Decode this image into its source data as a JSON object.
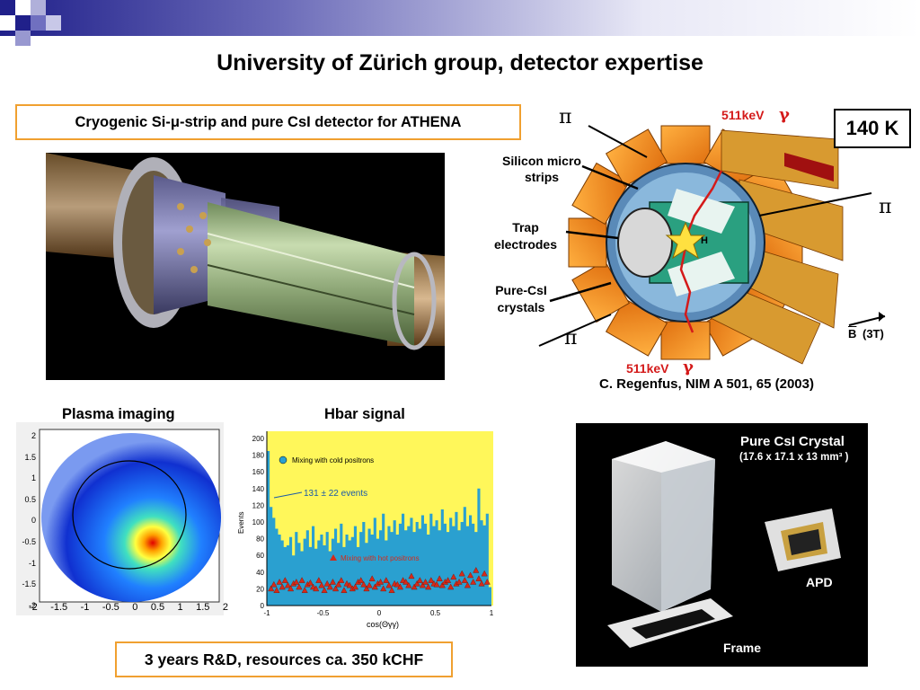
{
  "slide": {
    "title": "University of Zürich group, detector expertise",
    "athena_box": "Cryogenic Si-μ-strip and pure CsI detector for ATHENA",
    "temperature": "140 K",
    "rnd_box": "3 years R&D, resources ca. 350 kCHF",
    "reference": "C. Regenfus,  NIM A 501, 65 (2003)",
    "colors": {
      "accent": "#20208a",
      "box_border": "#f0a030",
      "red": "#d41a1a"
    }
  },
  "diagram": {
    "gamma_top": "511keV",
    "gamma_bottom": "511keV",
    "gamma_symbol": "γ",
    "pi_symbol": "π",
    "label_silicon_1": "Silicon micro",
    "label_silicon_2": "strips",
    "label_trap_1": "Trap",
    "label_trap_2": "electrodes",
    "label_csi_1": "Pure-CsI",
    "label_csi_2": "crystals",
    "center": "H",
    "field_B": "B",
    "field_value": "(3T)"
  },
  "plasma": {
    "heading": "Plasma imaging",
    "y_ticks": [
      "2",
      "1.5",
      "1",
      "0.5",
      "0",
      "-0.5",
      "-1",
      "-1.5",
      "-2"
    ],
    "x_ticks": [
      "-2",
      "-1.5",
      "-1",
      "-0.5",
      "0",
      "0.5",
      "1",
      "1.5",
      "2"
    ]
  },
  "csi_photo": {
    "title": "Pure CsI Crystal",
    "dims": "(17.6 x 17.1 x 13 mm³ )",
    "apd": "APD",
    "frame": "Frame"
  },
  "chart_data": {
    "type": "line",
    "title": "Hbar signal",
    "xlabel": "cos(Θγγ)",
    "ylabel": "Events",
    "xlim": [
      -1,
      1
    ],
    "ylim": [
      0,
      200
    ],
    "y_ticks": [
      "200",
      "180",
      "160",
      "140",
      "120",
      "100",
      "80",
      "60",
      "40",
      "20",
      "0"
    ],
    "x_ticks": [
      "-1",
      "-0.5",
      "0",
      "0.5",
      "1"
    ],
    "annotation": "131 ± 22 events",
    "series": [
      {
        "name": "Mixing with cold positrons",
        "color": "#2aa0d0",
        "x": [
          -1.0,
          -0.975,
          -0.95,
          -0.925,
          -0.9,
          -0.875,
          -0.85,
          -0.825,
          -0.8,
          -0.775,
          -0.75,
          -0.725,
          -0.7,
          -0.675,
          -0.65,
          -0.625,
          -0.6,
          -0.575,
          -0.55,
          -0.525,
          -0.5,
          -0.475,
          -0.45,
          -0.425,
          -0.4,
          -0.375,
          -0.35,
          -0.325,
          -0.3,
          -0.275,
          -0.25,
          -0.225,
          -0.2,
          -0.175,
          -0.15,
          -0.125,
          -0.1,
          -0.075,
          -0.05,
          -0.025,
          0.0,
          0.025,
          0.05,
          0.075,
          0.1,
          0.125,
          0.15,
          0.175,
          0.2,
          0.225,
          0.25,
          0.275,
          0.3,
          0.325,
          0.35,
          0.375,
          0.4,
          0.425,
          0.45,
          0.475,
          0.5,
          0.525,
          0.55,
          0.575,
          0.6,
          0.625,
          0.65,
          0.675,
          0.7,
          0.725,
          0.75,
          0.775,
          0.8,
          0.825,
          0.85,
          0.875,
          0.9,
          0.925,
          0.95,
          0.975
        ],
        "values": [
          185,
          118,
          105,
          92,
          85,
          78,
          70,
          72,
          82,
          60,
          88,
          75,
          65,
          80,
          90,
          70,
          95,
          68,
          78,
          85,
          72,
          88,
          65,
          80,
          92,
          75,
          98,
          70,
          85,
          78,
          82,
          95,
          70,
          88,
          100,
          75,
          92,
          85,
          105,
          80,
          90,
          110,
          78,
          95,
          88,
          102,
          85,
          98,
          110,
          90,
          95,
          105,
          88,
          100,
          92,
          108,
          98,
          85,
          110,
          95,
          102,
          90,
          115,
          98,
          88,
          105,
          95,
          112,
          90,
          100,
          118,
          95,
          108,
          98,
          88,
          140,
          102,
          96,
          110,
          22
        ]
      },
      {
        "name": "Mixing with hot positrons",
        "color": "#d42a1a",
        "x": [
          -0.975,
          -0.95,
          -0.925,
          -0.9,
          -0.875,
          -0.85,
          -0.825,
          -0.8,
          -0.775,
          -0.75,
          -0.725,
          -0.7,
          -0.675,
          -0.65,
          -0.625,
          -0.6,
          -0.575,
          -0.55,
          -0.525,
          -0.5,
          -0.475,
          -0.45,
          -0.425,
          -0.4,
          -0.375,
          -0.35,
          -0.325,
          -0.3,
          -0.275,
          -0.25,
          -0.225,
          -0.2,
          -0.175,
          -0.15,
          -0.125,
          -0.1,
          -0.075,
          -0.05,
          -0.025,
          0.0,
          0.025,
          0.05,
          0.075,
          0.1,
          0.125,
          0.15,
          0.175,
          0.2,
          0.225,
          0.25,
          0.275,
          0.3,
          0.325,
          0.35,
          0.375,
          0.4,
          0.425,
          0.45,
          0.475,
          0.5,
          0.525,
          0.55,
          0.575,
          0.6,
          0.625,
          0.65,
          0.675,
          0.7,
          0.725,
          0.75,
          0.775,
          0.8,
          0.825,
          0.85,
          0.875,
          0.9,
          0.925,
          0.95
        ],
        "values": [
          20,
          25,
          18,
          28,
          22,
          30,
          24,
          20,
          26,
          28,
          22,
          30,
          18,
          25,
          27,
          22,
          20,
          30,
          24,
          18,
          26,
          22,
          28,
          20,
          25,
          30,
          18,
          26,
          24,
          20,
          22,
          28,
          30,
          25,
          20,
          24,
          32,
          22,
          26,
          28,
          20,
          30,
          24,
          18,
          26,
          25,
          22,
          30,
          28,
          24,
          35,
          22,
          26,
          30,
          24,
          28,
          22,
          30,
          26,
          25,
          32,
          24,
          28,
          30,
          22,
          34,
          26,
          28,
          38,
          30,
          24,
          36,
          28,
          42,
          32,
          26,
          38,
          28
        ]
      }
    ]
  }
}
